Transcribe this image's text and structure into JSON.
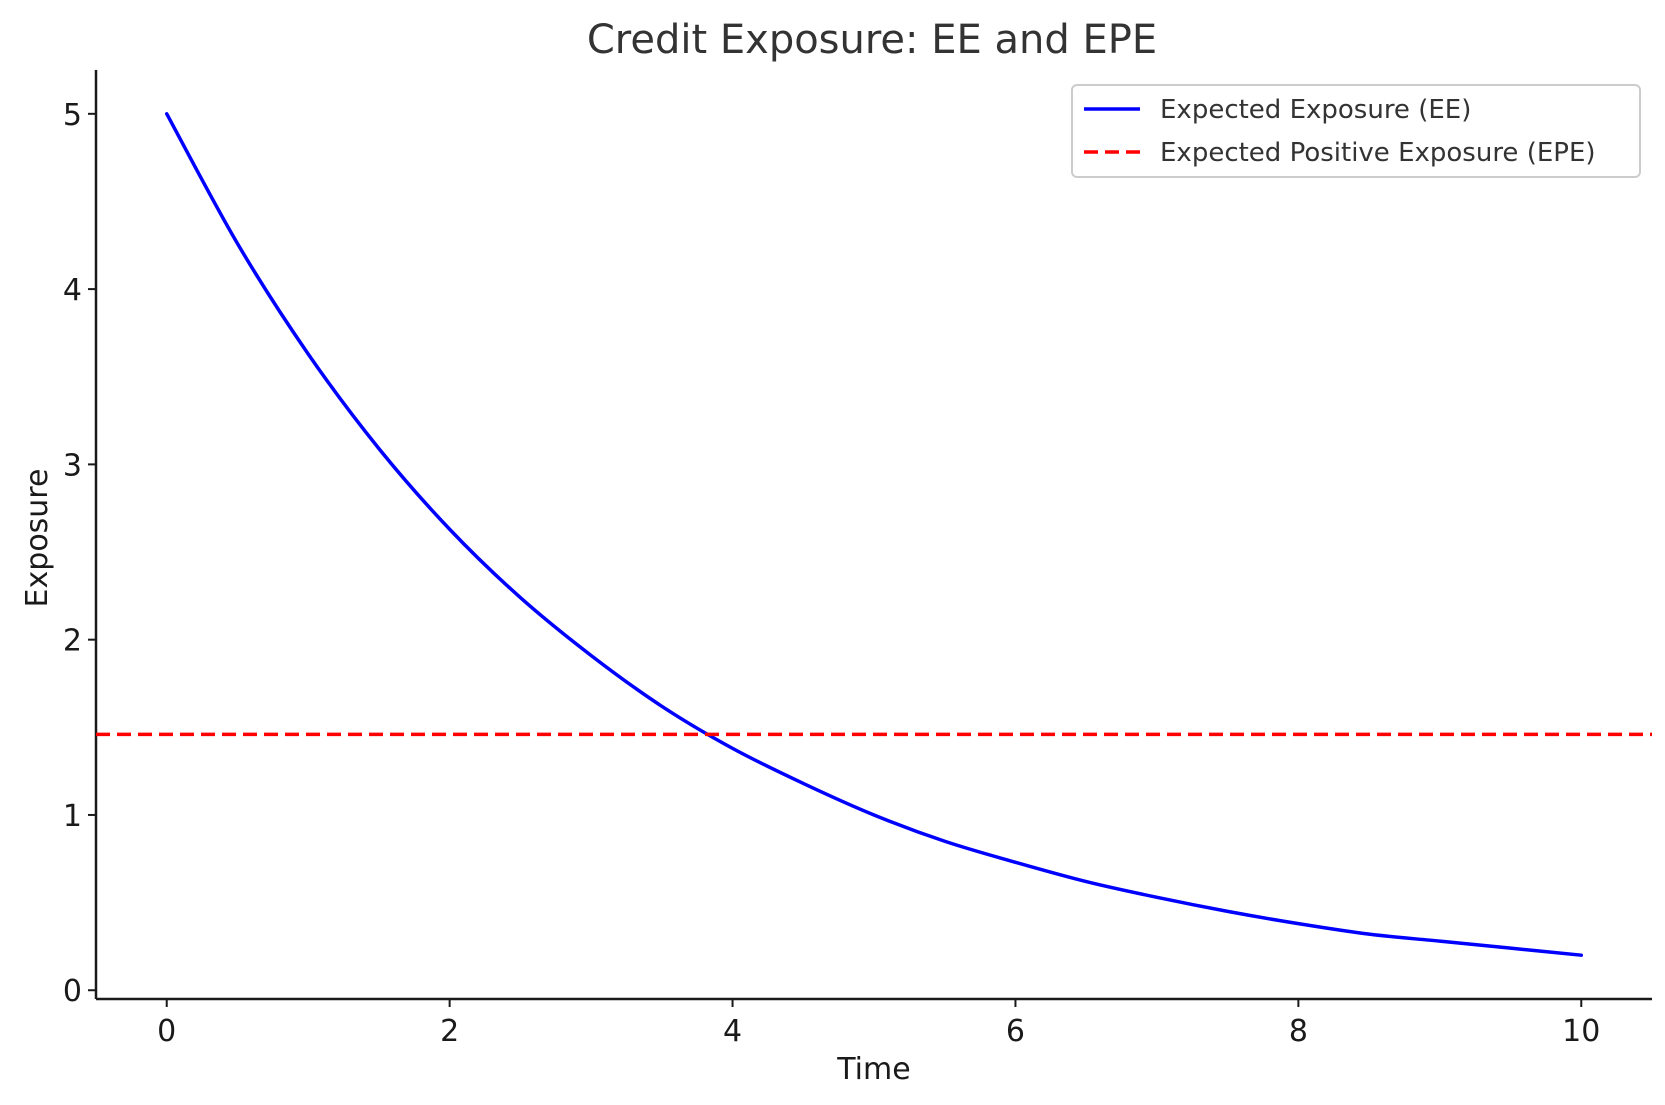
{
  "chart_data": {
    "type": "line",
    "title": "Credit Exposure: EE and EPE",
    "xlabel": "Time",
    "ylabel": "Exposure",
    "xlim": [
      -0.5,
      10.5
    ],
    "ylim": [
      -0.05,
      5.25
    ],
    "xticks": [
      0,
      2,
      4,
      6,
      8,
      10
    ],
    "yticks": [
      0,
      1,
      2,
      3,
      4,
      5
    ],
    "x_tick_labels": [
      "0",
      "2",
      "4",
      "6",
      "8",
      "10"
    ],
    "y_tick_labels": [
      "0",
      "1",
      "2",
      "3",
      "4",
      "5"
    ],
    "grid": false,
    "legend_position": "top-right",
    "series": [
      {
        "name": "Expected Exposure (EE)",
        "color": "#0000ff",
        "style": "solid",
        "x": [
          0,
          0.5,
          1,
          1.5,
          2,
          2.5,
          3,
          3.5,
          4,
          4.5,
          5,
          5.5,
          6,
          6.5,
          7,
          7.5,
          8,
          8.5,
          9,
          9.5,
          10
        ],
        "y": [
          5.0,
          4.26,
          3.63,
          3.09,
          2.63,
          2.24,
          1.91,
          1.62,
          1.38,
          1.18,
          1.0,
          0.85,
          0.73,
          0.62,
          0.53,
          0.45,
          0.38,
          0.32,
          0.28,
          0.24,
          0.2
        ]
      },
      {
        "name": "Expected Positive Exposure (EPE)",
        "color": "#ff0000",
        "style": "dashed",
        "type": "hline",
        "y": 1.46
      }
    ]
  }
}
